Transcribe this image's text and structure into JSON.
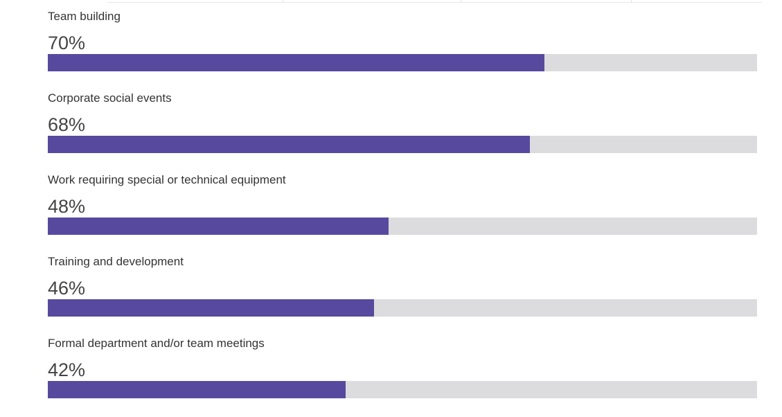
{
  "chart_data": {
    "type": "bar",
    "orientation": "horizontal",
    "categories": [
      "Team building",
      "Corporate social events",
      "Work requiring special or technical equipment",
      "Training and development",
      "Formal department and/or team meetings"
    ],
    "values": [
      70,
      68,
      48,
      46,
      42
    ],
    "value_labels": [
      "70%",
      "68%",
      "48%",
      "46%",
      "42%"
    ],
    "xlim": [
      0,
      100
    ],
    "unit": "%",
    "grid": false,
    "legend": "none",
    "colors": {
      "bar_fill": "#574a9e",
      "bar_track": "#dcdcde"
    }
  }
}
